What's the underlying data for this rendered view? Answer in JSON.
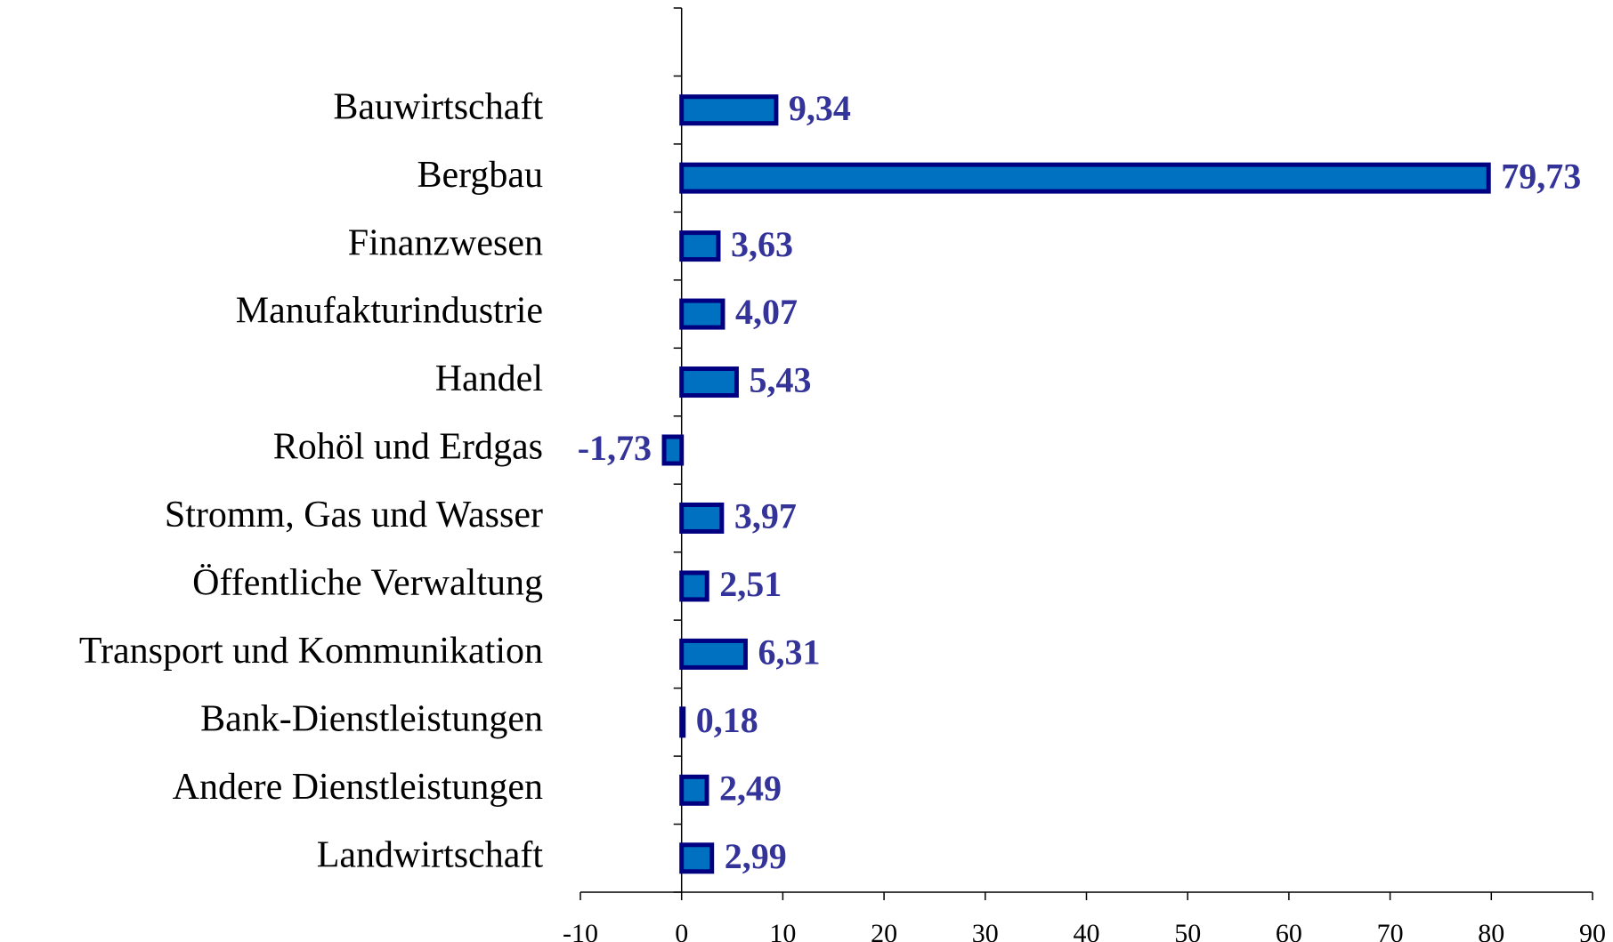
{
  "chart_data": {
    "type": "bar",
    "orientation": "horizontal",
    "categories": [
      "Bauwirtschaft",
      "Bergbau",
      "Finanzwesen",
      "Manufakturindustrie",
      "Handel",
      "Rohöl und Erdgas",
      "Stromm, Gas und Wasser",
      "Öffentliche Verwaltung",
      "Transport und Kommunikation",
      "Bank-Dienstleistungen",
      "Andere Dienstleistungen",
      "Landwirtschaft"
    ],
    "values": [
      9.34,
      79.73,
      3.63,
      4.07,
      5.43,
      -1.73,
      3.97,
      2.51,
      6.31,
      0.18,
      2.49,
      2.99
    ],
    "value_labels": [
      "9,34",
      "79,73",
      "3,63",
      "4,07",
      "5,43",
      "-1,73",
      "3,97",
      "2,51",
      "6,31",
      "0,18",
      "2,49",
      "2,99"
    ],
    "color": "#0070c0",
    "edge_color": "#000080",
    "label_color": "#333399",
    "xlim": [
      -10,
      90
    ],
    "xticks": [
      -10,
      0,
      10,
      20,
      30,
      40,
      50,
      60,
      70,
      80,
      90
    ]
  }
}
